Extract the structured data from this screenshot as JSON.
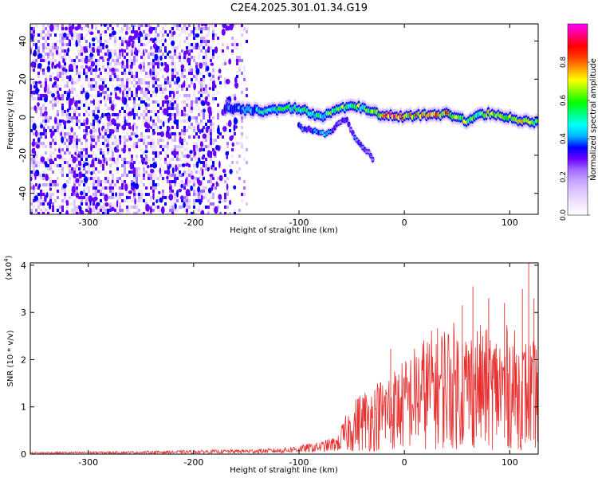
{
  "title": "C2E4.2025.301.01.34.G19",
  "chart_data": [
    {
      "type": "heatmap",
      "name": "spectrogram",
      "xlabel": "Height of straight line (km)",
      "ylabel": "Frequency (Hz)",
      "xlim": [
        -355,
        127
      ],
      "ylim": [
        -51,
        49
      ],
      "xticks": [
        -300,
        -200,
        -100,
        0,
        100
      ],
      "xtick_labels": [
        "-300",
        "-200",
        "-100",
        "0",
        "100"
      ],
      "yticks": [
        -40,
        -20,
        0,
        20,
        40
      ],
      "ytick_labels": [
        "-40",
        "-20",
        "0",
        "20",
        "40"
      ],
      "colorbar": {
        "label": "Normalized spectral amplitude",
        "range": [
          0,
          1
        ],
        "ticks": [
          0.0,
          0.2,
          0.4,
          0.6,
          0.8
        ],
        "tick_labels": [
          "0.0",
          "0.2",
          "0.4",
          "0.6",
          "0.8"
        ],
        "colors": [
          "#ffffff",
          "#f2e6ff",
          "#e0c9ff",
          "#c9a6ff",
          "#a46cff",
          "#6a00ff",
          "#0000ff",
          "#00b4ff",
          "#00ffff",
          "#00ff80",
          "#00ff00",
          "#80ff00",
          "#ffff00",
          "#ffa000",
          "#ff4000",
          "#ff0000",
          "#ff0080",
          "#ff00ff"
        ]
      },
      "noise_region": {
        "x_range": [
          -355,
          -150
        ],
        "y_range": [
          -51,
          49
        ],
        "level": [
          0.03,
          0.3
        ]
      },
      "main_track": [
        {
          "x": -170,
          "y": 5,
          "a": 0.35
        },
        {
          "x": -150,
          "y": 4,
          "a": 0.42
        },
        {
          "x": -130,
          "y": 3,
          "a": 0.45
        },
        {
          "x": -110,
          "y": 5,
          "a": 0.5
        },
        {
          "x": -95,
          "y": 4,
          "a": 0.55
        },
        {
          "x": -80,
          "y": 0,
          "a": 0.5
        },
        {
          "x": -70,
          "y": 2,
          "a": 0.55
        },
        {
          "x": -60,
          "y": 5,
          "a": 0.6
        },
        {
          "x": -50,
          "y": 6,
          "a": 0.6
        },
        {
          "x": -40,
          "y": 5,
          "a": 0.6
        },
        {
          "x": -30,
          "y": 3,
          "a": 0.65
        },
        {
          "x": -20,
          "y": 1,
          "a": 0.75
        },
        {
          "x": -10,
          "y": 1,
          "a": 0.85
        },
        {
          "x": 0,
          "y": 0,
          "a": 0.75
        },
        {
          "x": 10,
          "y": 1,
          "a": 0.75
        },
        {
          "x": 20,
          "y": 1,
          "a": 0.8
        },
        {
          "x": 30,
          "y": 1,
          "a": 0.85
        },
        {
          "x": 40,
          "y": 2,
          "a": 0.75
        },
        {
          "x": 50,
          "y": 0,
          "a": 0.6
        },
        {
          "x": 60,
          "y": -2,
          "a": 0.65
        },
        {
          "x": 70,
          "y": 1,
          "a": 0.6
        },
        {
          "x": 80,
          "y": 2,
          "a": 0.65
        },
        {
          "x": 90,
          "y": 1,
          "a": 0.7
        },
        {
          "x": 100,
          "y": 0,
          "a": 0.65
        },
        {
          "x": 110,
          "y": -2,
          "a": 0.7
        },
        {
          "x": 127,
          "y": -3,
          "a": 0.55
        }
      ],
      "side_track": [
        {
          "x": -100,
          "y": -5,
          "a": 0.3
        },
        {
          "x": -85,
          "y": -7,
          "a": 0.35
        },
        {
          "x": -75,
          "y": -9,
          "a": 0.45
        },
        {
          "x": -65,
          "y": -5,
          "a": 0.3
        },
        {
          "x": -55,
          "y": 0,
          "a": 0.25
        },
        {
          "x": -48,
          "y": -10,
          "a": 0.3
        },
        {
          "x": -42,
          "y": -14,
          "a": 0.3
        },
        {
          "x": -35,
          "y": -18,
          "a": 0.25
        },
        {
          "x": -30,
          "y": -23,
          "a": 0.2
        }
      ]
    },
    {
      "type": "line",
      "name": "snr",
      "xlabel": "Height of straight line (km)",
      "ylabel": "SNR (10 * v/v)",
      "y_multiplier_label": "(x10",
      "y_multiplier_exp": "4",
      "y_multiplier_close": ")",
      "xlim": [
        -355,
        127
      ],
      "ylim": [
        0,
        40500
      ],
      "xticks": [
        -300,
        -200,
        -100,
        0,
        100
      ],
      "xtick_labels": [
        "-300",
        "-200",
        "-100",
        "0",
        "100"
      ],
      "yticks": [
        0,
        10000,
        20000,
        30000,
        40000
      ],
      "ytick_labels": [
        "0",
        "1",
        "2",
        "3",
        "4"
      ],
      "color": "#e83030",
      "envelope": {
        "x": [
          -355,
          -300,
          -250,
          -200,
          -150,
          -120,
          -100,
          -80,
          -60,
          -50,
          -40,
          -30,
          -20,
          -10,
          0,
          10,
          20,
          30,
          40,
          50,
          60,
          70,
          80,
          90,
          100,
          110,
          120,
          127
        ],
        "y": [
          400,
          500,
          600,
          800,
          1000,
          1200,
          1800,
          2500,
          4000,
          7000,
          9000,
          9500,
          11000,
          12000,
          13000,
          15000,
          16500,
          17500,
          18500,
          18000,
          17500,
          18000,
          17000,
          17000,
          18000,
          16000,
          16000,
          15000
        ]
      },
      "spikes": [
        {
          "x": -13,
          "y": 22300
        },
        {
          "x": 55,
          "y": 31500
        },
        {
          "x": 65,
          "y": 35500
        },
        {
          "x": 80,
          "y": 33000
        },
        {
          "x": 95,
          "y": 32000
        },
        {
          "x": 112,
          "y": 35000
        },
        {
          "x": 118,
          "y": 40500
        },
        {
          "x": 123,
          "y": 33000
        }
      ]
    }
  ]
}
